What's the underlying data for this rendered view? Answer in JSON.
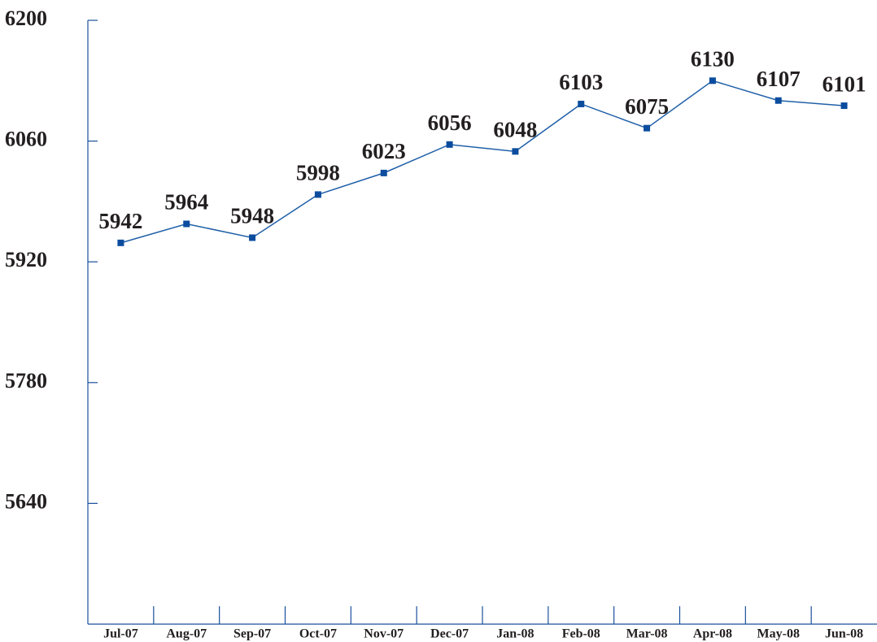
{
  "chart_data": {
    "type": "line",
    "categories": [
      "Jul-07",
      "Aug-07",
      "Sep-07",
      "Oct-07",
      "Nov-07",
      "Dec-07",
      "Jan-08",
      "Feb-08",
      "Mar-08",
      "Apr-08",
      "May-08",
      "Jun-08"
    ],
    "values": [
      5942,
      5964,
      5948,
      5998,
      6023,
      6056,
      6048,
      6103,
      6075,
      6130,
      6107,
      6101
    ],
    "color": "#1f5fa8",
    "marker_color": "#0b4c9e",
    "axis_color": "#1a4f9c",
    "ylim": [
      5500,
      6200
    ],
    "yticks": [
      5640,
      5780,
      5920,
      6060,
      6200
    ],
    "data_labels": true
  }
}
